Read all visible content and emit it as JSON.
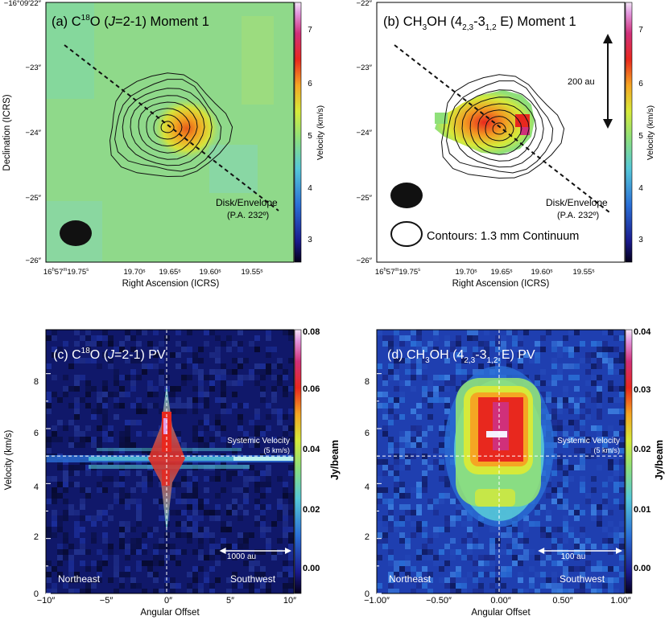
{
  "chart_data": [
    {
      "type": "heatmap",
      "panel": "a",
      "title": "(a) C¹⁸O (J=2-1) Moment 1",
      "title_parts": {
        "prefix": "(a) C",
        "sup": "18",
        "mid": "O (",
        "italic": "J",
        "suffix": "=2-1) Moment 1"
      },
      "xlabel": "Right Ascension (ICRS)",
      "ylabel": "Declination (ICRS)",
      "x_ticks": [
        "16ʰ57ᵐ19.75ˢ",
        "19.70ˢ",
        "19.65ˢ",
        "19.60ˢ",
        "19.55ˢ"
      ],
      "x_tick_first": {
        "h": "16",
        "hs": "h",
        "m": "57",
        "ms": "m",
        "s": "19.75",
        "ss": "s"
      },
      "y_ticks": [
        "−16°09′22″",
        "−23″",
        "−24″",
        "−25″",
        "−26″"
      ],
      "colorbar": {
        "label": "Velocity (km/s)",
        "ticks": [
          "3",
          "4",
          "5",
          "6",
          "7"
        ],
        "range": [
          2.5,
          7.6
        ]
      },
      "field_velocity_kms": 4.9,
      "peak_velocity_kms": 6.3,
      "contours": "1.3 mm Continuum",
      "contour_levels": 8,
      "cut_label": "Disk/Envelope",
      "cut_pa": "(P.A. 232º)"
    },
    {
      "type": "heatmap",
      "panel": "b",
      "title": "(b) CH₃OH (4₂,₃-3₁,₂ E) Moment 1",
      "title_parts": {
        "prefix": "(b) CH",
        "sub1": "3",
        "mid": "OH (4",
        "sub2": "2,3",
        "mid2": "-3",
        "sub3": "1,2",
        "suffix": " E) Moment 1"
      },
      "xlabel": "Right Ascension (ICRS)",
      "x_ticks": [
        "16ʰ57ᵐ19.75ˢ",
        "19.70ˢ",
        "19.65ˢ",
        "19.60ˢ",
        "19.55ˢ"
      ],
      "y_ticks": [
        "−22″",
        "−23″",
        "−24″",
        "−25″",
        "−26″"
      ],
      "colorbar": {
        "label": "Velocity (km/s)",
        "ticks": [
          "3",
          "4",
          "5",
          "6",
          "7"
        ],
        "range": [
          2.5,
          7.6
        ]
      },
      "scale_bar": "200 au",
      "legend_contours": "Contours: 1.3 mm Continuum",
      "cut_label": "Disk/Envelope",
      "cut_pa": "(P.A. 232º)"
    },
    {
      "type": "heatmap",
      "panel": "c",
      "title": "(c) C¹⁸O (J=2-1) PV",
      "title_parts": {
        "prefix": "(c) C",
        "sup": "18",
        "mid": "O (",
        "italic": "J",
        "suffix": "=2-1) PV"
      },
      "xlabel": "Angular Offset",
      "ylabel": "Velocity (km/s)",
      "x_ticks": [
        "−10″",
        "−5″",
        "0″",
        "5″",
        "10″"
      ],
      "xlim": [
        -10,
        10
      ],
      "y_ticks": [
        "0",
        "2",
        "4",
        "6",
        "8"
      ],
      "ylim": [
        0,
        9.6
      ],
      "systemic_velocity_kms": 5,
      "systemic_label": "Systemic Velocity",
      "systemic_sublabel": "(5 km/s)",
      "scale_bar": "1000 au",
      "scale_bar_offset": [
        4,
        10
      ],
      "left_label": "Northeast",
      "right_label": "Southwest",
      "colorbar": {
        "label": "Jy/beam",
        "ticks": [
          "0.00",
          "0.02",
          "0.04",
          "0.06",
          "0.08"
        ],
        "range": [
          -0.005,
          0.08
        ]
      }
    },
    {
      "type": "heatmap",
      "panel": "d",
      "title": "(d) CH₃OH (4₂,₃-3₁,₂ E) PV",
      "title_parts": {
        "prefix": "(d) CH",
        "sub1": "3",
        "mid": "OH (4",
        "sub2": "2,3",
        "mid2": "-3",
        "sub3": "1,2",
        "suffix": " E) PV"
      },
      "xlabel": "Angular Offset",
      "x_ticks": [
        "−1.00″",
        "−0.50″",
        "0.00″",
        "0.50″",
        "1.00″"
      ],
      "xlim": [
        -1,
        1
      ],
      "y_ticks": [
        "0",
        "2",
        "4",
        "6",
        "8"
      ],
      "ylim": [
        0,
        9.6
      ],
      "systemic_velocity_kms": 5,
      "systemic_label": "Systemic Velocity",
      "systemic_sublabel": "(5 km/s)",
      "scale_bar": "100 au",
      "scale_bar_offset": [
        0.3,
        1.0
      ],
      "left_label": "Northeast",
      "right_label": "Southwest",
      "colorbar": {
        "label": "Jy/beam",
        "ticks": [
          "0.00",
          "0.01",
          "0.02",
          "0.03",
          "0.04"
        ],
        "range": [
          -0.005,
          0.04
        ]
      }
    }
  ]
}
